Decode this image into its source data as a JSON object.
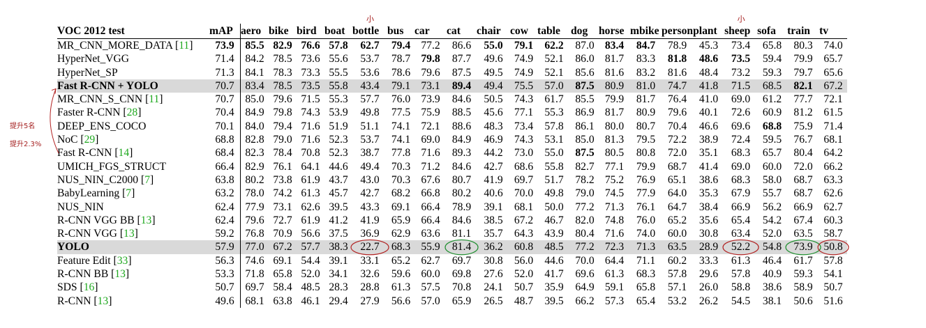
{
  "table": {
    "corner": "VOC 2012 test",
    "columns": [
      "mAP",
      "aero",
      "bike",
      "bird",
      "boat",
      "bottle",
      "bus",
      "car",
      "cat",
      "chair",
      "cow",
      "table",
      "dog",
      "horse",
      "mbike",
      "person",
      "plant",
      "sheep",
      "sofa",
      "train",
      "tv"
    ],
    "col_widths": [
      44,
      40,
      40,
      40,
      40,
      50,
      39,
      46,
      43,
      48,
      39,
      48,
      40,
      45,
      45,
      43,
      45,
      47,
      43,
      46,
      40
    ],
    "rows": [
      {
        "name": "MR_CNN_MORE_DATA",
        "ref": "11",
        "values": [
          "73.9",
          "85.5",
          "82.9",
          "76.6",
          "57.8",
          "62.7",
          "79.4",
          "77.2",
          "86.6",
          "55.0",
          "79.1",
          "62.2",
          "87.0",
          "83.4",
          "84.7",
          "78.9",
          "45.3",
          "73.4",
          "65.8",
          "80.3",
          "74.0"
        ],
        "bold": [
          0,
          1,
          2,
          3,
          4,
          5,
          6,
          9,
          10,
          11,
          13,
          14
        ]
      },
      {
        "name": "HyperNet_VGG",
        "ref": "",
        "values": [
          "71.4",
          "84.2",
          "78.5",
          "73.6",
          "55.6",
          "53.7",
          "78.7",
          "79.8",
          "87.7",
          "49.6",
          "74.9",
          "52.1",
          "86.0",
          "81.7",
          "83.3",
          "81.8",
          "48.6",
          "73.5",
          "59.4",
          "79.9",
          "65.7"
        ],
        "bold": [
          7,
          15,
          16,
          17
        ]
      },
      {
        "name": "HyperNet_SP",
        "ref": "",
        "values": [
          "71.3",
          "84.1",
          "78.3",
          "73.3",
          "55.5",
          "53.6",
          "78.6",
          "79.6",
          "87.5",
          "49.5",
          "74.9",
          "52.1",
          "85.6",
          "81.6",
          "83.2",
          "81.6",
          "48.4",
          "73.2",
          "59.3",
          "79.7",
          "65.6"
        ],
        "bold": []
      },
      {
        "name": "Fast R-CNN + YOLO",
        "ref": "",
        "values": [
          "70.7",
          "83.4",
          "78.5",
          "73.5",
          "55.8",
          "43.4",
          "79.1",
          "73.1",
          "89.4",
          "49.4",
          "75.5",
          "57.0",
          "87.5",
          "80.9",
          "81.0",
          "74.7",
          "41.8",
          "71.5",
          "68.5",
          "82.1",
          "67.2"
        ],
        "bold": [
          8,
          12,
          19
        ],
        "highlight": true
      },
      {
        "name": "MR_CNN_S_CNN",
        "ref": "11",
        "values": [
          "70.7",
          "85.0",
          "79.6",
          "71.5",
          "55.3",
          "57.7",
          "76.0",
          "73.9",
          "84.6",
          "50.5",
          "74.3",
          "61.7",
          "85.5",
          "79.9",
          "81.7",
          "76.4",
          "41.0",
          "69.0",
          "61.2",
          "77.7",
          "72.1"
        ],
        "bold": []
      },
      {
        "name": "Faster R-CNN",
        "ref": "28",
        "values": [
          "70.4",
          "84.9",
          "79.8",
          "74.3",
          "53.9",
          "49.8",
          "77.5",
          "75.9",
          "88.5",
          "45.6",
          "77.1",
          "55.3",
          "86.9",
          "81.7",
          "80.9",
          "79.6",
          "40.1",
          "72.6",
          "60.9",
          "81.2",
          "61.5"
        ],
        "bold": []
      },
      {
        "name": "DEEP_ENS_COCO",
        "ref": "",
        "values": [
          "70.1",
          "84.0",
          "79.4",
          "71.6",
          "51.9",
          "51.1",
          "74.1",
          "72.1",
          "88.6",
          "48.3",
          "73.4",
          "57.8",
          "86.1",
          "80.0",
          "80.7",
          "70.4",
          "46.6",
          "69.6",
          "68.8",
          "75.9",
          "71.4"
        ],
        "bold": [
          18
        ]
      },
      {
        "name": "NoC",
        "ref": "29",
        "values": [
          "68.8",
          "82.8",
          "79.0",
          "71.6",
          "52.3",
          "53.7",
          "74.1",
          "69.0",
          "84.9",
          "46.9",
          "74.3",
          "53.1",
          "85.0",
          "81.3",
          "79.5",
          "72.2",
          "38.9",
          "72.4",
          "59.5",
          "76.7",
          "68.1"
        ],
        "bold": []
      },
      {
        "name": "Fast R-CNN",
        "ref": "14",
        "values": [
          "68.4",
          "82.3",
          "78.4",
          "70.8",
          "52.3",
          "38.7",
          "77.8",
          "71.6",
          "89.3",
          "44.2",
          "73.0",
          "55.0",
          "87.5",
          "80.5",
          "80.8",
          "72.0",
          "35.1",
          "68.3",
          "65.7",
          "80.4",
          "64.2"
        ],
        "bold": [
          12
        ]
      },
      {
        "name": "UMICH_FGS_STRUCT",
        "ref": "",
        "values": [
          "66.4",
          "82.9",
          "76.1",
          "64.1",
          "44.6",
          "49.4",
          "70.3",
          "71.2",
          "84.6",
          "42.7",
          "68.6",
          "55.8",
          "82.7",
          "77.1",
          "79.9",
          "68.7",
          "41.4",
          "69.0",
          "60.0",
          "72.0",
          "66.2"
        ],
        "bold": []
      },
      {
        "name": "NUS_NIN_C2000",
        "ref": "7",
        "values": [
          "63.8",
          "80.2",
          "73.8",
          "61.9",
          "43.7",
          "43.0",
          "70.3",
          "67.6",
          "80.7",
          "41.9",
          "69.7",
          "51.7",
          "78.2",
          "75.2",
          "76.9",
          "65.1",
          "38.6",
          "68.3",
          "58.0",
          "68.7",
          "63.3"
        ],
        "bold": []
      },
      {
        "name": "BabyLearning",
        "ref": "7",
        "values": [
          "63.2",
          "78.0",
          "74.2",
          "61.3",
          "45.7",
          "42.7",
          "68.2",
          "66.8",
          "80.2",
          "40.6",
          "70.0",
          "49.8",
          "79.0",
          "74.5",
          "77.9",
          "64.0",
          "35.3",
          "67.9",
          "55.7",
          "68.7",
          "62.6"
        ],
        "bold": []
      },
      {
        "name": "NUS_NIN",
        "ref": "",
        "values": [
          "62.4",
          "77.9",
          "73.1",
          "62.6",
          "39.5",
          "43.3",
          "69.1",
          "66.4",
          "78.9",
          "39.1",
          "68.1",
          "50.0",
          "77.2",
          "71.3",
          "76.1",
          "64.7",
          "38.4",
          "66.9",
          "56.2",
          "66.9",
          "62.7"
        ],
        "bold": []
      },
      {
        "name": "R-CNN VGG BB",
        "ref": "13",
        "values": [
          "62.4",
          "79.6",
          "72.7",
          "61.9",
          "41.2",
          "41.9",
          "65.9",
          "66.4",
          "84.6",
          "38.5",
          "67.2",
          "46.7",
          "82.0",
          "74.8",
          "76.0",
          "65.2",
          "35.6",
          "65.4",
          "54.2",
          "67.4",
          "60.3"
        ],
        "bold": []
      },
      {
        "name": "R-CNN VGG",
        "ref": "13",
        "values": [
          "59.2",
          "76.8",
          "70.9",
          "56.6",
          "37.5",
          "36.9",
          "62.9",
          "63.6",
          "81.1",
          "35.7",
          "64.3",
          "43.9",
          "80.4",
          "71.6",
          "74.0",
          "60.0",
          "30.8",
          "63.4",
          "52.0",
          "63.5",
          "58.7"
        ],
        "bold": []
      },
      {
        "name": "YOLO",
        "ref": "",
        "values": [
          "57.9",
          "77.0",
          "67.2",
          "57.7",
          "38.3",
          "22.7",
          "68.3",
          "55.9",
          "81.4",
          "36.2",
          "60.8",
          "48.5",
          "77.2",
          "72.3",
          "71.3",
          "63.5",
          "28.9",
          "52.2",
          "54.8",
          "73.9",
          "50.8"
        ],
        "bold": [],
        "highlight": true
      },
      {
        "name": "Feature Edit",
        "ref": "33",
        "values": [
          "56.3",
          "74.6",
          "69.1",
          "54.4",
          "39.1",
          "33.1",
          "65.2",
          "62.7",
          "69.7",
          "30.8",
          "56.0",
          "44.6",
          "70.0",
          "64.4",
          "71.1",
          "60.2",
          "33.3",
          "61.3",
          "46.4",
          "61.7",
          "57.8"
        ],
        "bold": []
      },
      {
        "name": "R-CNN BB",
        "ref": "13",
        "values": [
          "53.3",
          "71.8",
          "65.8",
          "52.0",
          "34.1",
          "32.6",
          "59.6",
          "60.0",
          "69.8",
          "27.6",
          "52.0",
          "41.7",
          "69.6",
          "61.3",
          "68.3",
          "57.8",
          "29.6",
          "57.8",
          "40.9",
          "59.3",
          "54.1"
        ],
        "bold": []
      },
      {
        "name": "SDS",
        "ref": "16",
        "values": [
          "50.7",
          "69.7",
          "58.4",
          "48.5",
          "28.3",
          "28.8",
          "61.3",
          "57.5",
          "70.8",
          "24.1",
          "50.7",
          "35.9",
          "64.9",
          "59.1",
          "65.8",
          "57.1",
          "26.0",
          "58.8",
          "38.6",
          "58.9",
          "50.7"
        ],
        "bold": []
      },
      {
        "name": "R-CNN",
        "ref": "13",
        "values": [
          "49.6",
          "68.1",
          "63.8",
          "46.1",
          "29.4",
          "27.9",
          "56.6",
          "57.0",
          "65.9",
          "26.5",
          "48.7",
          "39.5",
          "66.2",
          "57.3",
          "65.4",
          "53.2",
          "26.2",
          "54.5",
          "38.1",
          "50.6",
          "51.6"
        ],
        "bold": []
      }
    ]
  },
  "annotations": {
    "top_marks": [
      "小",
      "小"
    ],
    "side_notes": [
      "提升5名",
      "提升2.3%"
    ],
    "ink_red": "#b22222",
    "ink_green": "#1f8f2f",
    "circles": [
      {
        "column": "bottle",
        "row": "YOLO",
        "color": "red"
      },
      {
        "column": "cat",
        "row": "YOLO",
        "color": "green"
      },
      {
        "column": "sheep",
        "row": "YOLO",
        "color": "red"
      },
      {
        "column": "train",
        "row": "YOLO",
        "color": "green"
      },
      {
        "column": "tv",
        "row": "YOLO",
        "color": "red"
      }
    ]
  }
}
